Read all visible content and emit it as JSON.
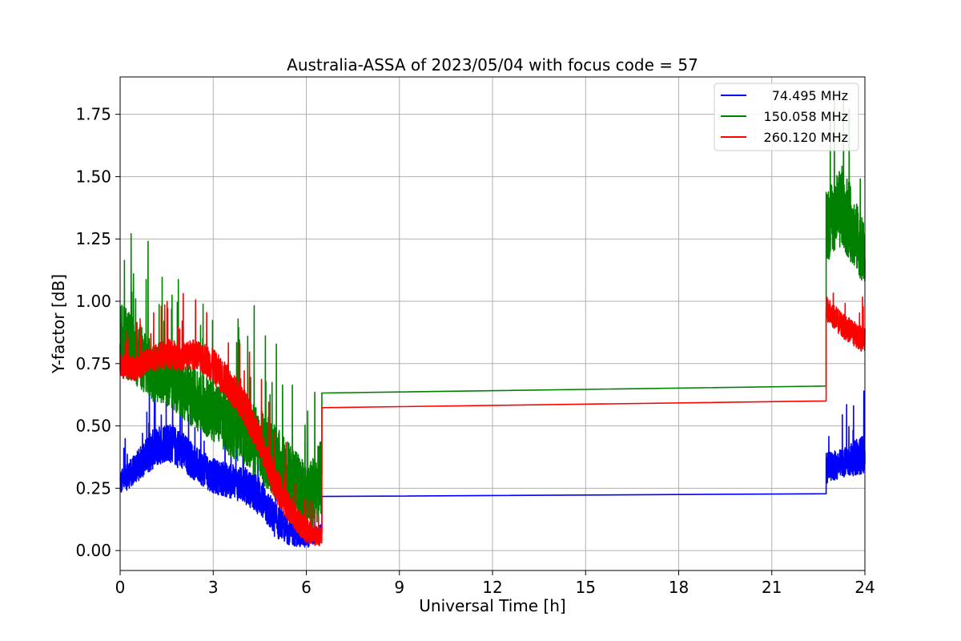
{
  "chart_data": {
    "type": "line",
    "title": "Australia-ASSA of 2023/05/04 with focus code = 57",
    "xlabel": "Universal Time [h]",
    "ylabel": "Y-factor [dB]",
    "xlim": [
      0,
      24
    ],
    "ylim": [
      -0.08,
      1.9
    ],
    "x_ticks": [
      "0",
      "3",
      "6",
      "9",
      "12",
      "15",
      "18",
      "21",
      "24"
    ],
    "y_ticks": [
      "0.00",
      "0.25",
      "0.50",
      "0.75",
      "1.00",
      "1.25",
      "1.50",
      "1.75"
    ],
    "grid": true,
    "legend_position": "top-right",
    "series": [
      {
        "name": "74.495 MHz",
        "color": "#0000ff",
        "segments": [
          {
            "x": [
              0,
              0.5,
              1,
              1.5,
              2,
              2.5,
              3,
              3.5,
              4,
              4.5,
              5,
              5.5,
              6,
              6.3,
              6.5
            ],
            "y": [
              0.27,
              0.33,
              0.4,
              0.44,
              0.4,
              0.34,
              0.3,
              0.28,
              0.26,
              0.22,
              0.12,
              0.07,
              0.05,
              0.06,
              0.08
            ],
            "noise": [
              0.05,
              0.06,
              0.08,
              0.08,
              0.08,
              0.07,
              0.07,
              0.07,
              0.07,
              0.08,
              0.07,
              0.05,
              0.04,
              0.03,
              0.03
            ]
          },
          {
            "x": [
              6.5,
              22.75
            ],
            "y": [
              0.217,
              0.228
            ],
            "noise": [
              0,
              0
            ]
          },
          {
            "x": [
              22.75,
              23.3,
              24
            ],
            "y": [
              0.33,
              0.35,
              0.39
            ],
            "noise": [
              0.06,
              0.06,
              0.08
            ]
          }
        ]
      },
      {
        "name": "150.058 MHz",
        "color": "#008000",
        "segments": [
          {
            "x": [
              0,
              0.5,
              1,
              1.5,
              2,
              2.5,
              3,
              3.5,
              4,
              4.5,
              5,
              5.5,
              6,
              6.3,
              6.5
            ],
            "y": [
              0.85,
              0.8,
              0.72,
              0.7,
              0.65,
              0.6,
              0.56,
              0.52,
              0.48,
              0.42,
              0.36,
              0.28,
              0.2,
              0.25,
              0.3
            ],
            "noise": [
              0.14,
              0.14,
              0.12,
              0.12,
              0.12,
              0.12,
              0.12,
              0.14,
              0.14,
              0.15,
              0.15,
              0.15,
              0.15,
              0.15,
              0.15
            ]
          },
          {
            "x": [
              6.5,
              22.75
            ],
            "y": [
              0.632,
              0.66
            ],
            "noise": [
              0,
              0
            ]
          },
          {
            "x": [
              22.75,
              23.3,
              24
            ],
            "y": [
              1.3,
              1.38,
              1.18
            ],
            "noise": [
              0.14,
              0.17,
              0.12
            ]
          }
        ]
      },
      {
        "name": "260.120 MHz",
        "color": "#ff0000",
        "segments": [
          {
            "x": [
              0,
              0.5,
              1,
              1.5,
              2,
              2.5,
              3,
              3.5,
              4,
              4.5,
              5,
              5.5,
              6,
              6.3,
              6.5
            ],
            "y": [
              0.74,
              0.73,
              0.77,
              0.79,
              0.78,
              0.79,
              0.74,
              0.67,
              0.58,
              0.44,
              0.27,
              0.16,
              0.08,
              0.06,
              0.06
            ],
            "noise": [
              0.05,
              0.05,
              0.05,
              0.06,
              0.06,
              0.06,
              0.07,
              0.07,
              0.07,
              0.07,
              0.07,
              0.06,
              0.05,
              0.04,
              0.04
            ]
          },
          {
            "x": [
              6.5,
              22.75
            ],
            "y": [
              0.573,
              0.6
            ],
            "noise": [
              0,
              0
            ]
          },
          {
            "x": [
              22.75,
              23.3,
              24
            ],
            "y": [
              0.97,
              0.9,
              0.84
            ],
            "noise": [
              0.05,
              0.05,
              0.05
            ]
          }
        ]
      }
    ]
  }
}
